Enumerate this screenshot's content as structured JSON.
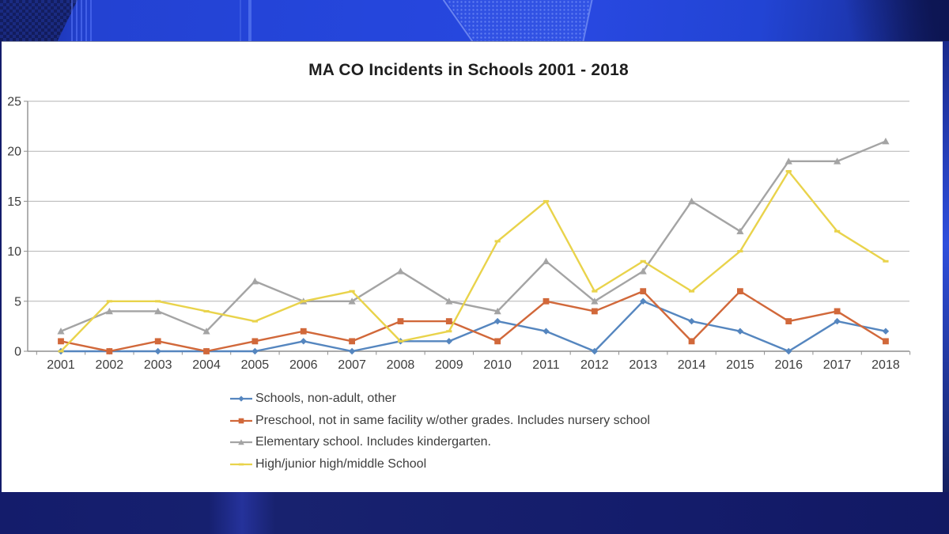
{
  "frame": {
    "style": "tv-news-blue-border",
    "top_band_color": "#2546dc",
    "bottom_band_color": "#141c6b",
    "panel_color": "#ffffff"
  },
  "chart_data": {
    "type": "line",
    "title": "MA CO Incidents in Schools 2001 - 2018",
    "xlabel": "",
    "ylabel": "",
    "ylim": [
      0,
      25
    ],
    "yticks": [
      0,
      5,
      10,
      15,
      20,
      25
    ],
    "grid": "horizontal",
    "legend_position": "bottom-left",
    "categories": [
      "2001",
      "2002",
      "2003",
      "2004",
      "2005",
      "2006",
      "2007",
      "2008",
      "2009",
      "2010",
      "2011",
      "2012",
      "2013",
      "2014",
      "2015",
      "2016",
      "2017",
      "2018"
    ],
    "series": [
      {
        "name": "Schools, non-adult, other",
        "color": "#5586BF",
        "marker": "diamond",
        "values": [
          0,
          0,
          0,
          0,
          0,
          1,
          0,
          1,
          1,
          3,
          2,
          0,
          5,
          3,
          2,
          0,
          3,
          2
        ]
      },
      {
        "name": "Preschool, not in same facility w/other grades. Includes nursery school",
        "color": "#D1683A",
        "marker": "square",
        "values": [
          1,
          0,
          1,
          0,
          1,
          2,
          1,
          3,
          3,
          1,
          5,
          4,
          6,
          1,
          6,
          3,
          4,
          1
        ]
      },
      {
        "name": "Elementary school. Includes kindergarten.",
        "color": "#A4A4A4",
        "marker": "triangle",
        "values": [
          2,
          4,
          4,
          2,
          7,
          5,
          5,
          8,
          5,
          4,
          9,
          5,
          8,
          15,
          12,
          19,
          19,
          21
        ]
      },
      {
        "name": "High/junior high/middle School",
        "color": "#E9D34B",
        "marker": "dash",
        "values": [
          0,
          5,
          5,
          4,
          3,
          5,
          6,
          1,
          2,
          11,
          15,
          6,
          9,
          6,
          10,
          18,
          12,
          9
        ]
      }
    ],
    "axis_color": "#8f8f8f",
    "gridline_color": "#b3b3b3",
    "tick_label_color": "#3d3d3d",
    "title_color": "#1f1f1f"
  }
}
